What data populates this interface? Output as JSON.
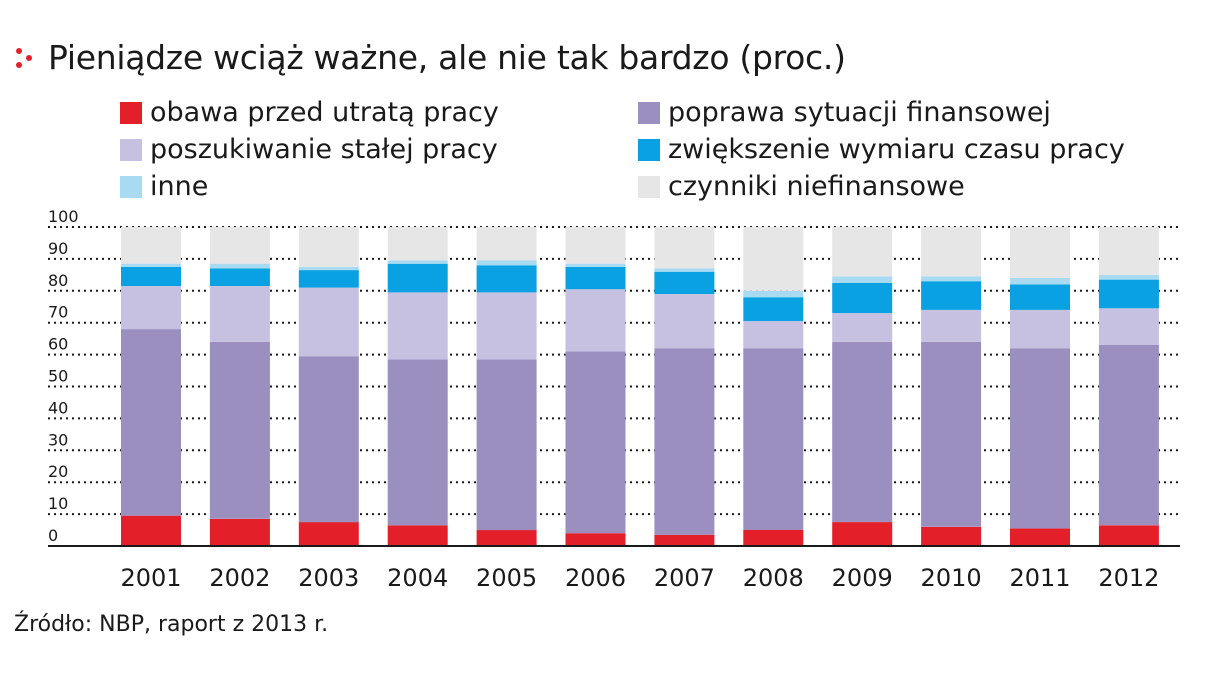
{
  "title": "Pieniądze wciąż ważne, ale nie tak bardzo (proc.)",
  "source": "Źródło: NBP, raport z 2013 r.",
  "colors": {
    "accent": "#e3202a",
    "axis": "#1a1a1a",
    "grid": "#1a1a1a"
  },
  "legend": [
    {
      "label": "obawa przed utratą pracy",
      "color": "#e3202a"
    },
    {
      "label": "poprawa sytuacji finansowej",
      "color": "#9b8fc0"
    },
    {
      "label": "poszukiwanie stałej pracy",
      "color": "#c6c1e0"
    },
    {
      "label": "zwiększenie wymiaru czasu pracy",
      "color": "#0aa1e2"
    },
    {
      "label": "inne",
      "color": "#a8daf2"
    },
    {
      "label": "czynniki niefinansowe",
      "color": "#e6e6e6"
    }
  ],
  "chart_data": {
    "type": "bar",
    "stacked": true,
    "title": "Pieniądze wciąż ważne, ale nie tak bardzo (proc.)",
    "categories": [
      "2001",
      "2002",
      "2003",
      "2004",
      "2005",
      "2006",
      "2007",
      "2008",
      "2009",
      "2010",
      "2011",
      "2012"
    ],
    "ylim": [
      0,
      100
    ],
    "yticks": [
      0,
      10,
      20,
      30,
      40,
      50,
      60,
      70,
      80,
      90,
      100
    ],
    "grid": true,
    "grid_style": "dotted",
    "legend_position": "top",
    "series": [
      {
        "name": "obawa przed utratą pracy",
        "color": "#e3202a",
        "values": [
          9.5,
          8.5,
          7.5,
          6.5,
          5,
          4,
          3.5,
          5,
          7.5,
          6,
          5.5,
          6.5
        ]
      },
      {
        "name": "poprawa sytuacji finansowej",
        "color": "#9b8fc0",
        "values": [
          58.5,
          55.5,
          52,
          52,
          53.5,
          57,
          58.5,
          57,
          56.5,
          58,
          56.5,
          56.5
        ]
      },
      {
        "name": "poszukiwanie stałej pracy",
        "color": "#c6c1e0",
        "values": [
          13.5,
          17.5,
          21.5,
          21,
          21,
          19.5,
          17,
          8.5,
          9,
          10,
          12,
          11.5
        ]
      },
      {
        "name": "zwiększenie wymiaru czasu pracy",
        "color": "#0aa1e2",
        "values": [
          6,
          5.5,
          5.5,
          9,
          8.5,
          7,
          7,
          7.5,
          9.5,
          9,
          8,
          9
        ]
      },
      {
        "name": "inne",
        "color": "#a8daf2",
        "values": [
          1,
          1.5,
          1,
          1,
          1.5,
          1,
          1,
          2,
          2,
          1.5,
          2,
          1.5
        ]
      },
      {
        "name": "czynniki niefinansowe",
        "color": "#e6e6e6",
        "values": [
          11.5,
          11.5,
          12.5,
          10.5,
          10.5,
          11.5,
          13,
          20,
          15.5,
          15.5,
          16,
          15
        ]
      }
    ]
  }
}
